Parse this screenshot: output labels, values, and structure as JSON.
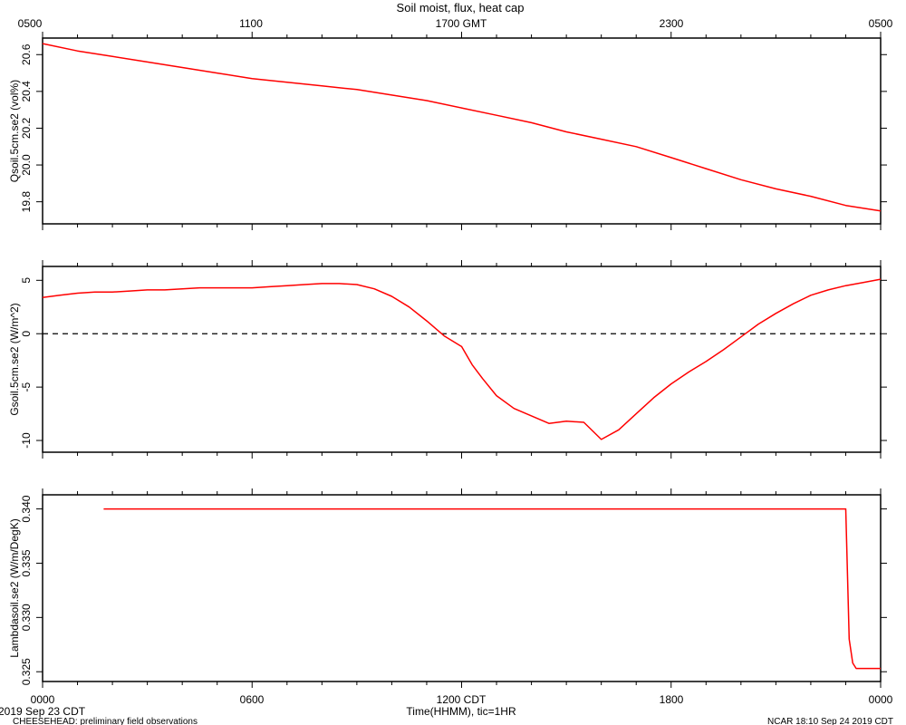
{
  "chart_data": [
    {
      "type": "line",
      "title": "Soil moist, flux, heat cap",
      "ylabel": "Qsoil.5cm.se2 (vol%)",
      "ylim": [
        19.68,
        20.69
      ],
      "yticks": [
        19.8,
        20.0,
        20.2,
        20.4,
        20.6
      ],
      "ytick_labels": [
        "19.8",
        "20.0",
        "20.2",
        "20.4",
        "20.6"
      ],
      "series": [
        {
          "color": "#ff0000",
          "x": [
            0,
            1,
            2,
            3,
            4,
            5,
            6,
            7,
            8,
            9,
            10,
            11,
            12,
            13,
            14,
            15,
            16,
            17,
            18,
            19,
            20,
            21,
            22,
            23,
            24
          ],
          "y": [
            20.66,
            20.62,
            20.59,
            20.56,
            20.53,
            20.5,
            20.47,
            20.45,
            20.43,
            20.41,
            20.38,
            20.35,
            20.31,
            20.27,
            20.23,
            20.18,
            20.14,
            20.1,
            20.04,
            19.98,
            19.92,
            19.87,
            19.83,
            19.78,
            19.75
          ]
        }
      ]
    },
    {
      "type": "line",
      "ylabel": "Gsoil.5cm.se2 (W/m^2)",
      "ylim": [
        -11.1,
        6.3
      ],
      "yticks": [
        -10,
        -5,
        0,
        5
      ],
      "ytick_labels": [
        "-10",
        "-5",
        "0",
        "5"
      ],
      "zero_line": true,
      "series": [
        {
          "color": "#ff0000",
          "x": [
            0,
            0.5,
            1,
            1.5,
            2,
            2.5,
            3,
            3.5,
            4,
            4.5,
            5,
            5.5,
            6,
            6.5,
            7,
            7.5,
            8,
            8.5,
            9,
            9.5,
            10,
            10.5,
            11,
            11.5,
            12,
            12.3,
            12.6,
            13,
            13.5,
            14,
            14.5,
            15,
            15.5,
            16,
            16.5,
            17,
            17.5,
            18,
            18.5,
            19,
            19.5,
            20,
            20.5,
            21,
            21.5,
            22,
            22.5,
            23,
            23.5,
            24
          ],
          "y": [
            3.4,
            3.6,
            3.8,
            3.9,
            3.9,
            4.0,
            4.1,
            4.1,
            4.2,
            4.3,
            4.3,
            4.3,
            4.3,
            4.4,
            4.5,
            4.6,
            4.7,
            4.7,
            4.6,
            4.2,
            3.5,
            2.5,
            1.2,
            -0.2,
            -1.2,
            -2.9,
            -4.2,
            -5.8,
            -7.0,
            -7.7,
            -8.4,
            -8.2,
            -8.3,
            -9.9,
            -9.0,
            -7.5,
            -6.0,
            -4.7,
            -3.6,
            -2.6,
            -1.5,
            -0.3,
            0.9,
            1.9,
            2.8,
            3.6,
            4.1,
            4.5,
            4.8,
            5.1
          ]
        }
      ]
    },
    {
      "type": "line",
      "ylabel": "Lambdasoil.se2 (W/m/DegK)",
      "ylim": [
        0.3241,
        0.3413
      ],
      "yticks": [
        0.325,
        0.33,
        0.335,
        0.34
      ],
      "ytick_labels": [
        "0.325",
        "0.330",
        "0.335",
        "0.340"
      ],
      "series": [
        {
          "color": "#ff0000",
          "x": [
            1.75,
            23.0,
            23.05,
            23.1,
            23.2,
            23.3,
            24
          ],
          "y": [
            0.34,
            0.34,
            0.334,
            0.328,
            0.3258,
            0.3253,
            0.3253
          ]
        }
      ]
    }
  ],
  "axes": {
    "x_range": [
      0,
      24
    ],
    "top_tick_labels": [
      "0500",
      "1100",
      "1700 GMT",
      "2300",
      "0500"
    ],
    "bottom_tick_labels": [
      "0000",
      "0600",
      "1200 CDT",
      "1800",
      "0000"
    ],
    "xlabel": "Time(HHMM), tic=1HR"
  },
  "footer": {
    "date_left": "2019 Sep 23 CDT",
    "project": "CHEESEHEAD: preliminary field observations",
    "right": "NCAR 18:10 Sep 24 2019 CDT"
  }
}
